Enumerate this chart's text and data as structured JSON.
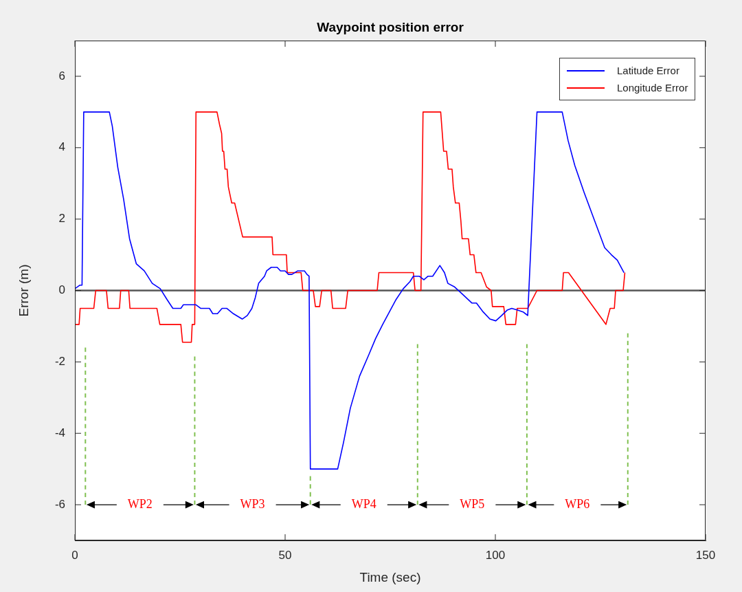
{
  "chart_data": {
    "type": "line",
    "title": "Waypoint position error",
    "xlabel": "Time (sec)",
    "ylabel": "Error (m)",
    "xlim": [
      0,
      150
    ],
    "xticks": [
      0,
      50,
      100,
      150
    ],
    "ylim": [
      -7,
      7
    ],
    "yticks": [
      -6,
      -4,
      -2,
      0,
      2,
      4,
      6
    ],
    "legend": "top right",
    "marker": "none",
    "series": [
      {
        "name": "Latitude Error",
        "color": "#0000ff",
        "x": [
          0,
          1.2,
          1.7,
          2.1,
          8.2,
          8.9,
          10.2,
          11.6,
          13,
          14.6,
          16.5,
          18.4,
          20.3,
          21.9,
          23.3,
          25.2,
          25.8,
          28.8,
          29.9,
          32,
          32.8,
          33.9,
          35,
          36.1,
          37.7,
          39.8,
          41,
          42.1,
          42.9,
          43.7,
          45.1,
          45.6,
          46.7,
          48.1,
          48.9,
          50,
          50.8,
          51.6,
          53,
          54.6,
          55.2,
          55.7,
          56,
          62.5,
          63.9,
          65.5,
          67.7,
          69.9,
          71.5,
          73.2,
          74.8,
          76.4,
          78.1,
          79.7,
          80.5,
          81.9,
          83,
          84,
          85.1,
          86.8,
          87.9,
          88.7,
          90.3,
          91.7,
          94.4,
          95.5,
          97.1,
          98.7,
          100.1,
          101.5,
          102.8,
          103.9,
          105.3,
          106.6,
          107.7,
          109.9,
          115.9,
          117.3,
          118.9,
          121.1,
          123.3,
          126,
          127.6,
          129,
          130.6
        ],
        "values": [
          0.05,
          0.15,
          0.15,
          5,
          5,
          4.6,
          3.45,
          2.55,
          1.45,
          0.75,
          0.55,
          0.2,
          0.05,
          -0.25,
          -0.5,
          -0.5,
          -0.4,
          -0.4,
          -0.5,
          -0.5,
          -0.65,
          -0.65,
          -0.5,
          -0.5,
          -0.65,
          -0.8,
          -0.7,
          -0.5,
          -0.2,
          0.2,
          0.4,
          0.55,
          0.65,
          0.65,
          0.55,
          0.55,
          0.45,
          0.45,
          0.55,
          0.55,
          0.45,
          0.4,
          -5,
          -5,
          -4.25,
          -3.3,
          -2.4,
          -1.8,
          -1.35,
          -0.95,
          -0.6,
          -0.25,
          0.05,
          0.25,
          0.4,
          0.4,
          0.3,
          0.4,
          0.4,
          0.7,
          0.5,
          0.2,
          0.1,
          -0.05,
          -0.35,
          -0.35,
          -0.6,
          -0.8,
          -0.85,
          -0.7,
          -0.55,
          -0.5,
          -0.55,
          -0.6,
          -0.7,
          5,
          5,
          4.2,
          3.5,
          2.75,
          2.05,
          1.2,
          1,
          0.85,
          0.5
        ]
      },
      {
        "name": "Longitude Error",
        "color": "#ff0000",
        "x": [
          0,
          1,
          1.25,
          4.5,
          4.95,
          7.5,
          7.9,
          10.6,
          10.9,
          12.8,
          13.1,
          19.5,
          20.2,
          25.2,
          25.6,
          27.7,
          27.9,
          28.5,
          28.8,
          33.8,
          34.4,
          34.9,
          35.1,
          35.4,
          35.7,
          36.2,
          36.5,
          37.3,
          38,
          39.9,
          46.9,
          47.1,
          50.3,
          50.5,
          53.8,
          54.2,
          56.7,
          57.2,
          58.2,
          58.7,
          60.9,
          61.3,
          64.4,
          64.9,
          71.9,
          72.3,
          80.5,
          80.9,
          82.3,
          82.8,
          87,
          87.7,
          88.4,
          88.8,
          89.7,
          90,
          90.5,
          91.4,
          91.8,
          92.1,
          93.6,
          94,
          94.9,
          95.4,
          96.6,
          97.9,
          99,
          99.3,
          102,
          102.5,
          104.8,
          105.2,
          107.7,
          109.9,
          115.9,
          116.2,
          117.4,
          126.3,
          127.3,
          128.3,
          128.6,
          130.4,
          130.8
        ],
        "values": [
          -0.95,
          -0.95,
          -0.5,
          -0.5,
          0,
          0,
          -0.5,
          -0.5,
          0,
          0,
          -0.5,
          -0.5,
          -0.95,
          -0.95,
          -1.45,
          -1.45,
          -0.95,
          -0.95,
          5,
          5,
          4.65,
          4.4,
          3.9,
          3.9,
          3.4,
          3.4,
          2.9,
          2.45,
          2.45,
          1.5,
          1.5,
          1,
          1,
          0.5,
          0.5,
          0,
          0,
          -0.45,
          -0.45,
          0,
          0,
          -0.5,
          -0.5,
          0,
          0,
          0.5,
          0.5,
          0,
          0,
          5,
          5,
          3.9,
          3.9,
          3.4,
          3.4,
          2.9,
          2.45,
          2.45,
          1.95,
          1.45,
          1.45,
          1,
          1,
          0.5,
          0.5,
          0.1,
          0,
          -0.45,
          -0.45,
          -0.95,
          -0.95,
          -0.5,
          -0.5,
          0,
          0,
          0.5,
          0.5,
          -0.95,
          -0.5,
          -0.5,
          0,
          0,
          0.5
        ]
      },
      {
        "color": "#80c050",
        "line_style": "dashed",
        "x": [
          2.5,
          2.5
        ],
        "values": [
          -1.6,
          -6
        ]
      },
      {
        "color": "#80c050",
        "line_style": "dashed",
        "x": [
          28.5,
          28.5
        ],
        "values": [
          -1.85,
          -6
        ]
      },
      {
        "color": "#80c050",
        "line_style": "dashed",
        "x": [
          56,
          56
        ],
        "values": [
          -5.2,
          -6
        ]
      },
      {
        "color": "#80c050",
        "line_style": "dashed",
        "x": [
          81.5,
          81.5
        ],
        "values": [
          -1.5,
          -6
        ]
      },
      {
        "color": "#80c050",
        "line_style": "dashed",
        "x": [
          107.5,
          107.5
        ],
        "values": [
          -1.5,
          -6
        ]
      },
      {
        "color": "#80c050",
        "line_style": "dashed",
        "x": [
          131.5,
          131.5
        ],
        "values": [
          -1.2,
          -6
        ]
      }
    ],
    "ref_lines": [
      {
        "axis": "y",
        "value": 0,
        "color": "#555555"
      }
    ],
    "annotations": [
      "WP2",
      "WP3",
      "WP4",
      "WP5",
      "WP6"
    ]
  }
}
